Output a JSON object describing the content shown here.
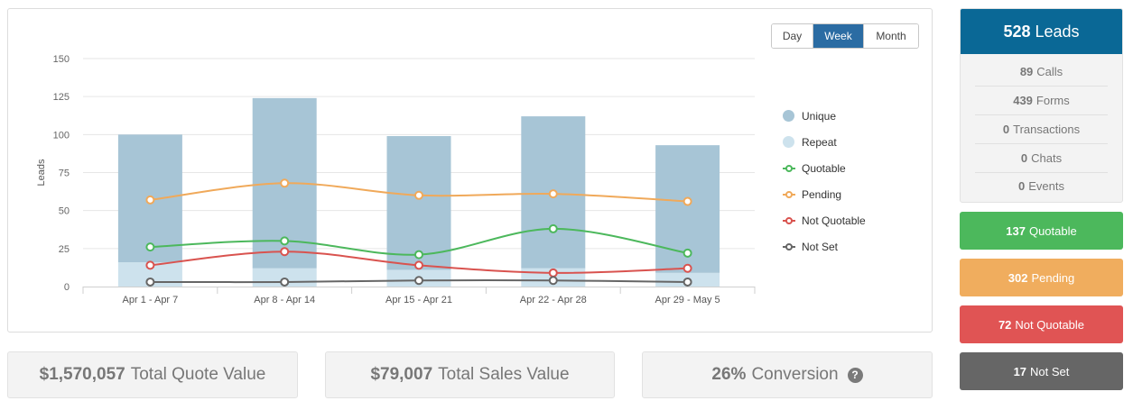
{
  "range_toggle": {
    "day": "Day",
    "week": "Week",
    "month": "Month",
    "selected": "Week"
  },
  "chart_data": {
    "type": "bar",
    "categories": [
      "Apr 1 - Apr 7",
      "Apr 8 - Apr 14",
      "Apr 15 - Apr 21",
      "Apr 22 - Apr 28",
      "Apr 29 - May 5"
    ],
    "ylabel": "Leads",
    "ylim": [
      0,
      150
    ],
    "yticks": [
      0,
      25,
      50,
      75,
      100,
      125,
      150
    ],
    "grid": true,
    "legend_position": "right",
    "bars": [
      {
        "name": "Unique",
        "values": [
          84,
          112,
          88,
          100,
          84
        ],
        "color": "#a7c5d6"
      },
      {
        "name": "Repeat",
        "values": [
          16,
          12,
          11,
          12,
          9
        ],
        "color": "#cde2ed"
      }
    ],
    "lines": [
      {
        "name": "Quotable",
        "values": [
          26,
          30,
          21,
          38,
          22
        ],
        "color": "#4cb85c"
      },
      {
        "name": "Pending",
        "values": [
          57,
          68,
          60,
          61,
          56
        ],
        "color": "#f0a95a"
      },
      {
        "name": "Not Quotable",
        "values": [
          14,
          23,
          14,
          9,
          12
        ],
        "color": "#d9534f"
      },
      {
        "name": "Not Set",
        "values": [
          3,
          3,
          4,
          4,
          3
        ],
        "color": "#666666"
      }
    ]
  },
  "stats": {
    "quote": {
      "value": "$1,570,057",
      "label": "Total Quote Value"
    },
    "sales": {
      "value": "$79,007",
      "label": "Total Sales Value"
    },
    "conversion": {
      "value": "26%",
      "label": "Conversion",
      "help": "?"
    }
  },
  "leads": {
    "total": "528",
    "total_label": "Leads",
    "breakdown": [
      {
        "count": "89",
        "label": "Calls"
      },
      {
        "count": "439",
        "label": "Forms"
      },
      {
        "count": "0",
        "label": "Transactions"
      },
      {
        "count": "0",
        "label": "Chats"
      },
      {
        "count": "0",
        "label": "Events"
      }
    ]
  },
  "status": {
    "quotable": {
      "count": "137",
      "label": "Quotable",
      "color": "#4cb85c"
    },
    "pending": {
      "count": "302",
      "label": "Pending",
      "color": "#f0ad5e"
    },
    "not_quotable": {
      "count": "72",
      "label": "Not Quotable",
      "color": "#e05454"
    },
    "not_set": {
      "count": "17",
      "label": "Not Set",
      "color": "#666666"
    }
  }
}
